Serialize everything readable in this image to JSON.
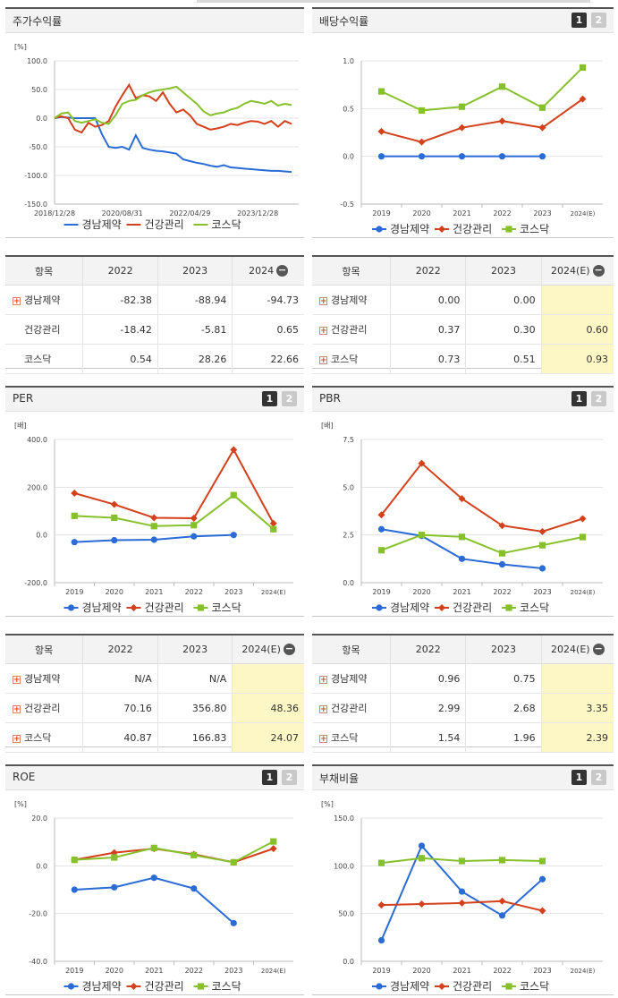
{
  "panels": {
    "stock": {
      "title": "주가수익률"
    },
    "dividend": {
      "title": "배당수익률",
      "btn1": "1",
      "btn2": "2"
    },
    "per": {
      "title": "PER",
      "btn1": "1",
      "btn2": "2"
    },
    "pbr": {
      "title": "PBR",
      "btn1": "1",
      "btn2": "2"
    },
    "roe": {
      "title": "ROE",
      "btn1": "1",
      "btn2": "2"
    },
    "debt": {
      "title": "부채비율",
      "btn1": "1",
      "btn2": "2"
    }
  },
  "legend": [
    "경남제약",
    "건강관리",
    "코스닥"
  ],
  "colors": {
    "s1": "#2a6bd6",
    "s2": "#d4401b",
    "s3": "#86c12b"
  },
  "chart_data": [
    {
      "id": "stock",
      "type": "line",
      "unit": "[%]",
      "ylim": [
        -150,
        100
      ],
      "yticks": [
        "100.0",
        "50.0",
        "0.0",
        "-50.0",
        "-100.0",
        "-150.0"
      ],
      "xticks": [
        "2018/12/28",
        "2020/08/31",
        "2022/04/29",
        "2023/12/28"
      ],
      "x": [
        "2018-12",
        "2019-02",
        "2019-04",
        "2019-06",
        "2019-08",
        "2019-10",
        "2019-12",
        "2020-02",
        "2020-04",
        "2020-06",
        "2020-08",
        "2020-10",
        "2020-12",
        "2021-02",
        "2021-04",
        "2021-06",
        "2021-08",
        "2021-10",
        "2021-12",
        "2022-02",
        "2022-04",
        "2022-06",
        "2022-08",
        "2022-10",
        "2022-12",
        "2023-02",
        "2023-04",
        "2023-06",
        "2023-08",
        "2023-10",
        "2023-12",
        "2024-02",
        "2024-04",
        "2024-06",
        "2024-08",
        "2024-10"
      ],
      "series": [
        {
          "name": "경남제약",
          "values": [
            0,
            2,
            1,
            0,
            0,
            0,
            0,
            -28,
            -50,
            -52,
            -50,
            -55,
            -30,
            -52,
            -55,
            -57,
            -58,
            -60,
            -62,
            -72,
            -75,
            -78,
            -80,
            -83,
            -85,
            -82,
            -86,
            -87,
            -88,
            -89,
            -90,
            -91,
            -92,
            -92,
            -93,
            -94
          ]
        },
        {
          "name": "건강관리",
          "values": [
            0,
            3,
            0,
            -20,
            -25,
            -8,
            -15,
            -12,
            -5,
            20,
            40,
            58,
            35,
            40,
            38,
            30,
            45,
            25,
            10,
            15,
            5,
            -10,
            -15,
            -20,
            -18,
            -15,
            -10,
            -12,
            -8,
            -5,
            -6,
            -10,
            -5,
            -15,
            -5,
            -10
          ]
        },
        {
          "name": "코스닥",
          "values": [
            0,
            8,
            10,
            -5,
            -8,
            -5,
            -2,
            -8,
            -10,
            5,
            25,
            30,
            32,
            40,
            45,
            48,
            50,
            52,
            55,
            45,
            35,
            25,
            12,
            5,
            8,
            10,
            15,
            18,
            25,
            30,
            28,
            25,
            30,
            22,
            25,
            23
          ]
        }
      ]
    },
    {
      "id": "dividend",
      "type": "line",
      "unit": "",
      "ylim": [
        -0.5,
        1.0
      ],
      "yticks": [
        "1.0",
        "0.5",
        "0.0",
        "-0.5"
      ],
      "categories": [
        "2019",
        "2020",
        "2021",
        "2022",
        "2023",
        "2024(E)"
      ],
      "series": [
        {
          "name": "경남제약",
          "values": [
            0.0,
            0.0,
            0.0,
            0.0,
            0.0,
            null
          ]
        },
        {
          "name": "건강관리",
          "values": [
            0.26,
            0.15,
            0.3,
            0.37,
            0.3,
            0.6
          ]
        },
        {
          "name": "코스닥",
          "values": [
            0.68,
            0.48,
            0.52,
            0.73,
            0.51,
            0.93
          ]
        }
      ]
    },
    {
      "id": "per",
      "type": "line",
      "unit": "[배]",
      "ylim": [
        -200,
        400
      ],
      "yticks": [
        "400.0",
        "200.0",
        "0.0",
        "-200.0"
      ],
      "categories": [
        "2019",
        "2020",
        "2021",
        "2022",
        "2023",
        "2024(E)"
      ],
      "series": [
        {
          "name": "경남제약",
          "values": [
            -30,
            -22,
            -20,
            -6,
            0,
            null
          ]
        },
        {
          "name": "건강관리",
          "values": [
            175,
            128,
            72,
            70.16,
            356.8,
            48.36
          ]
        },
        {
          "name": "코스닥",
          "values": [
            80,
            72,
            37,
            40.87,
            166.83,
            24.07
          ]
        }
      ]
    },
    {
      "id": "pbr",
      "type": "line",
      "unit": "[배]",
      "ylim": [
        0,
        7.5
      ],
      "yticks": [
        "7.5",
        "5.0",
        "2.5",
        "0.0"
      ],
      "categories": [
        "2019",
        "2020",
        "2021",
        "2022",
        "2023",
        "2024(E)"
      ],
      "series": [
        {
          "name": "경남제약",
          "values": [
            2.8,
            2.45,
            1.25,
            0.96,
            0.75,
            null
          ]
        },
        {
          "name": "건강관리",
          "values": [
            3.55,
            6.25,
            4.4,
            2.99,
            2.68,
            3.35
          ]
        },
        {
          "name": "코스닥",
          "values": [
            1.7,
            2.5,
            2.4,
            1.54,
            1.96,
            2.39
          ]
        }
      ]
    },
    {
      "id": "roe",
      "type": "line",
      "unit": "[%]",
      "ylim": [
        -40,
        20
      ],
      "yticks": [
        "20.0",
        "0.0",
        "-20.0",
        "-40.0"
      ],
      "categories": [
        "2019",
        "2020",
        "2021",
        "2022",
        "2023",
        "2024(E)"
      ],
      "series": [
        {
          "name": "경남제약",
          "values": [
            -10,
            -9,
            -5,
            -9.5,
            -24,
            null
          ]
        },
        {
          "name": "건강관리",
          "values": [
            2.5,
            5.5,
            7.2,
            4.8,
            1.5,
            7.2
          ]
        },
        {
          "name": "코스닥",
          "values": [
            2.5,
            3.5,
            7.5,
            4.5,
            1.5,
            10.2
          ]
        }
      ]
    },
    {
      "id": "debt",
      "type": "line",
      "unit": "[%]",
      "ylim": [
        0,
        150
      ],
      "yticks": [
        "150.0",
        "100.0",
        "50.0",
        "0.0"
      ],
      "categories": [
        "2019",
        "2020",
        "2021",
        "2022",
        "2023",
        "2024(E)"
      ],
      "series": [
        {
          "name": "경남제약",
          "values": [
            22,
            121,
            73,
            48,
            86,
            null
          ]
        },
        {
          "name": "건강관리",
          "values": [
            59,
            60,
            61,
            63,
            53,
            null
          ]
        },
        {
          "name": "코스닥",
          "values": [
            103,
            108,
            105,
            106,
            105,
            null
          ]
        }
      ]
    }
  ],
  "tables": {
    "stock": {
      "headers": [
        "항목",
        "2022",
        "2023",
        "2024"
      ],
      "rows": [
        {
          "name": "경남제약",
          "v": [
            "-82.38",
            "-88.94",
            "-94.73"
          ]
        },
        {
          "name": "건강관리",
          "v": [
            "-18.42",
            "-5.81",
            "0.65"
          ]
        },
        {
          "name": "코스닥",
          "v": [
            "0.54",
            "28.26",
            "22.66"
          ]
        }
      ]
    },
    "dividend": {
      "headers": [
        "항목",
        "2022",
        "2023",
        "2024(E)"
      ],
      "rows": [
        {
          "name": "경남제약",
          "v": [
            "0.00",
            "0.00",
            ""
          ]
        },
        {
          "name": "건강관리",
          "v": [
            "0.37",
            "0.30",
            "0.60"
          ]
        },
        {
          "name": "코스닥",
          "v": [
            "0.73",
            "0.51",
            "0.93"
          ]
        }
      ]
    },
    "per": {
      "headers": [
        "항목",
        "2022",
        "2023",
        "2024(E)"
      ],
      "rows": [
        {
          "name": "경남제약",
          "v": [
            "N/A",
            "N/A",
            ""
          ]
        },
        {
          "name": "건강관리",
          "v": [
            "70.16",
            "356.80",
            "48.36"
          ]
        },
        {
          "name": "코스닥",
          "v": [
            "40.87",
            "166.83",
            "24.07"
          ]
        }
      ]
    },
    "pbr": {
      "headers": [
        "항목",
        "2022",
        "2023",
        "2024(E)"
      ],
      "rows": [
        {
          "name": "경남제약",
          "v": [
            "0.96",
            "0.75",
            ""
          ]
        },
        {
          "name": "건강관리",
          "v": [
            "2.99",
            "2.68",
            "3.35"
          ]
        },
        {
          "name": "코스닥",
          "v": [
            "1.54",
            "1.96",
            "2.39"
          ]
        }
      ]
    }
  }
}
